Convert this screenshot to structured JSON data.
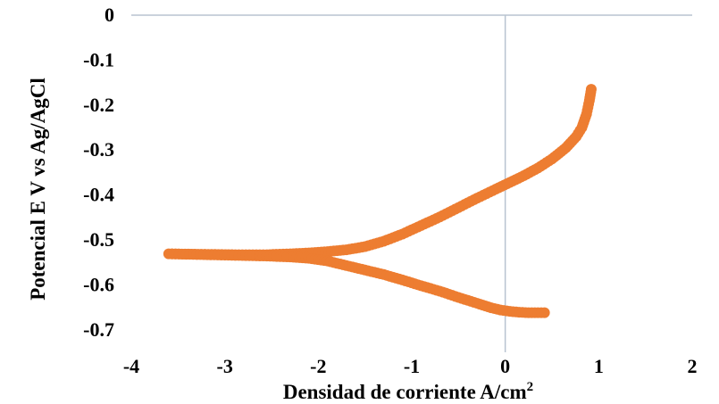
{
  "chart_data": {
    "type": "scatter",
    "title": "",
    "xlabel": "Densidad de corriente A/cm",
    "xlabel_superscript": "2",
    "ylabel": "Potencial E V vs Ag/AgCl",
    "xlim": [
      -4,
      2
    ],
    "ylim": [
      -0.75,
      0
    ],
    "x_ticks": [
      "-4",
      "-3",
      "-2",
      "-1",
      "0",
      "1",
      "2"
    ],
    "y_ticks": [
      "0",
      "-0.1",
      "-0.2",
      "-0.3",
      "-0.4",
      "-0.5",
      "-0.6",
      "-0.7"
    ],
    "grid": false,
    "legend": "none",
    "series": [
      {
        "color": "#ED7D31",
        "marker": "circle",
        "connected": true,
        "points": [
          [
            0.92,
            -0.165
          ],
          [
            0.9,
            -0.19
          ],
          [
            0.87,
            -0.22
          ],
          [
            0.82,
            -0.25
          ],
          [
            0.76,
            -0.27
          ],
          [
            0.65,
            -0.295
          ],
          [
            0.5,
            -0.32
          ],
          [
            0.35,
            -0.34
          ],
          [
            0.2,
            -0.357
          ],
          [
            0.05,
            -0.372
          ],
          [
            -0.1,
            -0.387
          ],
          [
            -0.3,
            -0.407
          ],
          [
            -0.5,
            -0.428
          ],
          [
            -0.7,
            -0.449
          ],
          [
            -0.9,
            -0.468
          ],
          [
            -1.1,
            -0.487
          ],
          [
            -1.3,
            -0.503
          ],
          [
            -1.5,
            -0.515
          ],
          [
            -1.7,
            -0.522
          ],
          [
            -1.9,
            -0.526
          ],
          [
            -2.1,
            -0.529
          ],
          [
            -2.3,
            -0.531
          ],
          [
            -2.45,
            -0.532
          ],
          [
            -2.55,
            -0.533
          ],
          [
            -2.7,
            -0.533
          ],
          [
            -2.85,
            -0.533
          ],
          [
            -3.25,
            -0.532
          ],
          [
            -3.6,
            -0.531
          ],
          [
            -2.55,
            -0.536
          ],
          [
            -2.3,
            -0.538
          ],
          [
            -2.1,
            -0.541
          ],
          [
            -1.9,
            -0.547
          ],
          [
            -1.7,
            -0.557
          ],
          [
            -1.5,
            -0.567
          ],
          [
            -1.3,
            -0.577
          ],
          [
            -1.1,
            -0.589
          ],
          [
            -0.9,
            -0.602
          ],
          [
            -0.7,
            -0.614
          ],
          [
            -0.5,
            -0.628
          ],
          [
            -0.3,
            -0.641
          ],
          [
            -0.15,
            -0.651
          ],
          [
            -0.05,
            -0.656
          ],
          [
            0.05,
            -0.659
          ],
          [
            0.15,
            -0.661
          ],
          [
            0.25,
            -0.662
          ],
          [
            0.35,
            -0.662
          ],
          [
            0.42,
            -0.662
          ]
        ]
      }
    ]
  }
}
